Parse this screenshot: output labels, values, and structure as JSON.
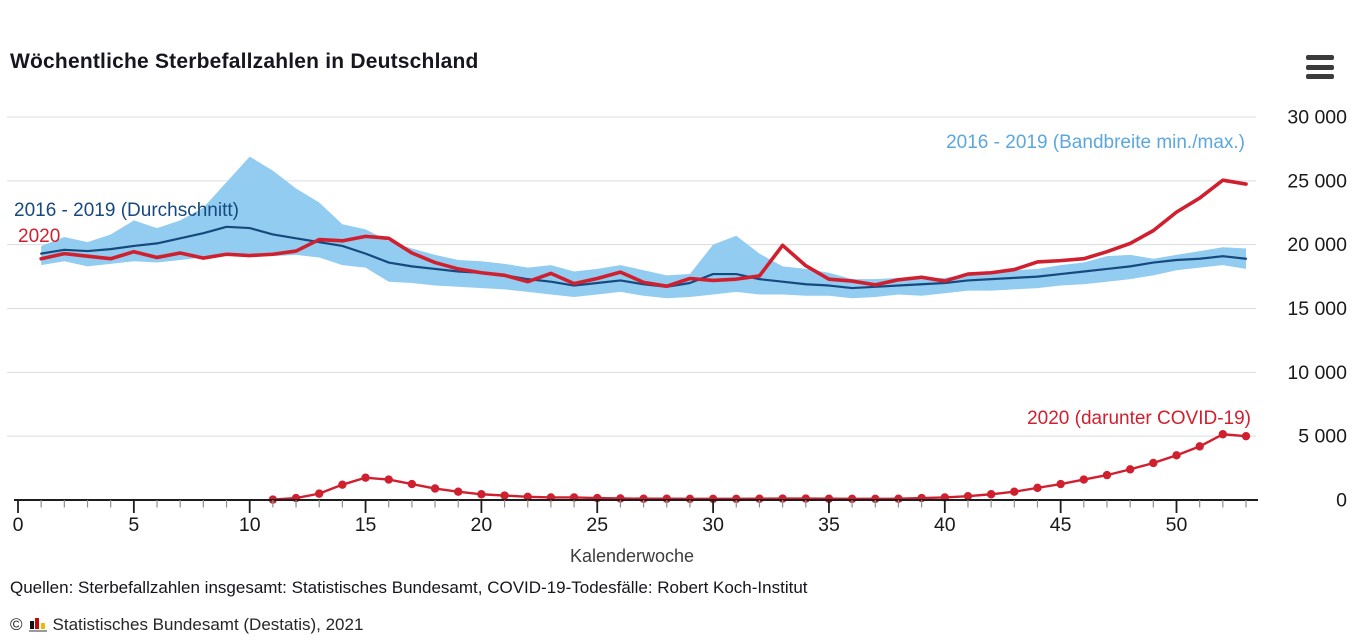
{
  "header": {
    "title": "Wöchentliche Sterbefallzahlen in Deutschland",
    "menu_icon": "hamburger-menu-icon"
  },
  "chart_data": {
    "type": "line",
    "title": "Wöchentliche Sterbefallzahlen in Deutschland",
    "xlabel": "Kalenderwoche",
    "ylabel": "",
    "x_range": [
      0,
      53.5
    ],
    "ylim": [
      0,
      30000
    ],
    "grid": true,
    "legend_position": "annotations-on-plot",
    "x_ticks": [
      0,
      5,
      10,
      15,
      20,
      25,
      30,
      35,
      40,
      45,
      50
    ],
    "x_minor_tick_step": 1,
    "y_ticks": [
      {
        "value": 0,
        "label": "0"
      },
      {
        "value": 5000,
        "label": "5 000"
      },
      {
        "value": 10000,
        "label": "10 000"
      },
      {
        "value": 15000,
        "label": "15 000"
      },
      {
        "value": 20000,
        "label": "20 000"
      },
      {
        "value": 25000,
        "label": "25 000"
      },
      {
        "value": 30000,
        "label": "30 000"
      }
    ],
    "series": [
      {
        "name": "2016 - 2019 (Bandbreite min./max.)",
        "kind": "band",
        "color": "#92ccf0",
        "start_week": 1,
        "max": [
          19900,
          20600,
          20200,
          20800,
          21900,
          21300,
          21900,
          22900,
          24900,
          26900,
          25800,
          24400,
          23300,
          21600,
          21200,
          20300,
          19700,
          19200,
          18800,
          18700,
          18500,
          18200,
          18400,
          17900,
          18100,
          18400,
          18000,
          17600,
          17700,
          20000,
          20700,
          19300,
          18300,
          18100,
          17800,
          17300,
          17300,
          17400,
          17300,
          17400,
          17700,
          17900,
          18000,
          18100,
          18400,
          18600,
          19100,
          19200,
          18900,
          19200,
          19500,
          19800,
          19700
        ],
        "min": [
          18400,
          18700,
          18300,
          18500,
          18700,
          18600,
          18800,
          19000,
          19300,
          19300,
          19100,
          19200,
          19000,
          18400,
          18200,
          17100,
          17000,
          16800,
          16700,
          16600,
          16500,
          16300,
          16100,
          15900,
          16100,
          16300,
          16000,
          15800,
          15900,
          16100,
          16300,
          16100,
          16100,
          16000,
          16000,
          15800,
          15900,
          16100,
          16000,
          16200,
          16400,
          16400,
          16500,
          16600,
          16800,
          16900,
          17100,
          17300,
          17600,
          18000,
          18200,
          18400,
          18100
        ]
      },
      {
        "name": "2016 - 2019 (Durchschnitt)",
        "kind": "line",
        "color": "#16497e",
        "stroke_width": 2.2,
        "start_week": 1,
        "values": [
          19300,
          19600,
          19500,
          19650,
          19900,
          20100,
          20500,
          20900,
          21400,
          21300,
          20800,
          20500,
          20200,
          19900,
          19300,
          18600,
          18300,
          18100,
          17900,
          17800,
          17600,
          17300,
          17100,
          16800,
          17000,
          17200,
          16900,
          16700,
          17000,
          17700,
          17700,
          17300,
          17100,
          16900,
          16800,
          16600,
          16700,
          16800,
          16900,
          17000,
          17200,
          17300,
          17400,
          17500,
          17700,
          17900,
          18100,
          18300,
          18600,
          18800,
          18900,
          19100,
          18900
        ]
      },
      {
        "name": "2020",
        "kind": "line",
        "color": "#d0202f",
        "stroke_width": 3.6,
        "start_week": 1,
        "values": [
          18900,
          19300,
          19100,
          18900,
          19450,
          19000,
          19350,
          18950,
          19250,
          19150,
          19250,
          19500,
          20400,
          20300,
          20650,
          20500,
          19350,
          18600,
          18100,
          17800,
          17600,
          17100,
          17750,
          16950,
          17350,
          17850,
          17050,
          16750,
          17350,
          17200,
          17300,
          17550,
          19950,
          18350,
          17300,
          17150,
          16850,
          17250,
          17450,
          17150,
          17700,
          17800,
          18050,
          18650,
          18750,
          18900,
          19450,
          20100,
          21100,
          22550,
          23650,
          25050,
          24750
        ]
      },
      {
        "name": "2020 (darunter COVID-19)",
        "kind": "line_markers",
        "color": "#d0202f",
        "stroke_width": 2.4,
        "marker_radius": 4.2,
        "start_week": 11,
        "values": [
          30,
          150,
          500,
          1200,
          1750,
          1600,
          1250,
          900,
          650,
          450,
          350,
          250,
          200,
          200,
          150,
          120,
          100,
          100,
          90,
          90,
          90,
          100,
          110,
          110,
          100,
          90,
          90,
          100,
          150,
          200,
          300,
          450,
          650,
          950,
          1250,
          1600,
          1950,
          2400,
          2900,
          3500,
          4200,
          5150,
          5000
        ]
      }
    ],
    "annotations": [
      {
        "text": "2016 - 2019 (Bandbreite min./max.)",
        "color": "#5ba7de"
      },
      {
        "text": "2016 - 2019 (Durchschnitt)",
        "color": "#16497e"
      },
      {
        "text": "2020",
        "color": "#d0202f"
      },
      {
        "text": "2020 (darunter COVID-19)",
        "color": "#d0202f"
      }
    ]
  },
  "footer": {
    "sources": "Quellen: Sterbefallzahlen insgesamt: Statistisches Bundesamt, COVID-19-Todesfälle: Robert Koch-Institut",
    "copyright_symbol": "©",
    "copyright": "Statistisches Bundesamt (Destatis), 2021",
    "logo_icon": "destatis-bar-chart-logo"
  }
}
